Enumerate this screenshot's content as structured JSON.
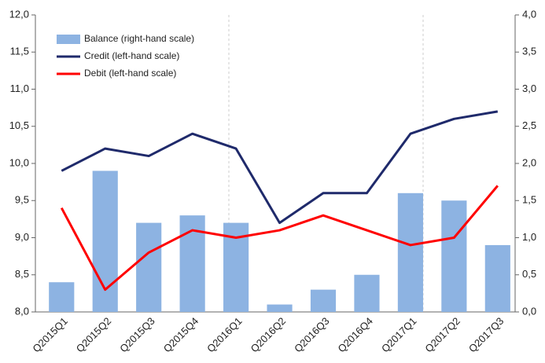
{
  "chart_data": {
    "type": "combo",
    "categories": [
      "Q2015Q1",
      "Q2015Q2",
      "Q2015Q3",
      "Q2015Q4",
      "Q2016Q1",
      "Q2016Q2",
      "Q2016Q3",
      "Q2016Q4",
      "Q2017Q1",
      "Q2017Q2",
      "Q2017Q3"
    ],
    "series": [
      {
        "name": "Balance (right-hand scale)",
        "type": "bar",
        "axis": "y2",
        "color": "#8db3e2",
        "values": [
          0.4,
          1.9,
          1.2,
          1.3,
          1.2,
          0.1,
          0.3,
          0.5,
          1.6,
          1.5,
          0.9
        ]
      },
      {
        "name": "Credit (left-hand scale)",
        "type": "line",
        "color": "#1f2a6b",
        "values": [
          9.9,
          10.2,
          10.1,
          10.4,
          10.2,
          9.2,
          9.6,
          9.6,
          10.4,
          10.6,
          10.7
        ]
      },
      {
        "name": "Debit (left-hand scale)",
        "type": "line",
        "color": "#ff0000",
        "values": [
          9.4,
          8.3,
          8.8,
          9.1,
          9.0,
          9.1,
          9.3,
          9.1,
          8.9,
          9.0,
          9.7
        ]
      }
    ],
    "ylim": [
      8,
      12
    ],
    "yticks": [
      {
        "value": 8,
        "label": "8,0"
      },
      {
        "value": 8.5,
        "label": "8,5"
      },
      {
        "value": 9,
        "label": "9,0"
      },
      {
        "value": 9.5,
        "label": "9,5"
      },
      {
        "value": 10,
        "label": "10,0"
      },
      {
        "value": 10.5,
        "label": "10,5"
      },
      {
        "value": 11,
        "label": "11,0"
      },
      {
        "value": 11.5,
        "label": "11,5"
      },
      {
        "value": 12,
        "label": "12,0"
      }
    ],
    "y2lim": [
      0,
      4
    ],
    "y2ticks": [
      {
        "value": 0,
        "label": "0,0"
      },
      {
        "value": 0.5,
        "label": "0,5"
      },
      {
        "value": 1,
        "label": "1,0"
      },
      {
        "value": 1.5,
        "label": "1,5"
      },
      {
        "value": 2,
        "label": "2,0"
      },
      {
        "value": 2.5,
        "label": "2,5"
      },
      {
        "value": 3,
        "label": "3,0"
      },
      {
        "value": 3.5,
        "label": "3,5"
      },
      {
        "value": 4,
        "label": "4,0"
      }
    ],
    "legend": "upper left",
    "grid": false
  }
}
